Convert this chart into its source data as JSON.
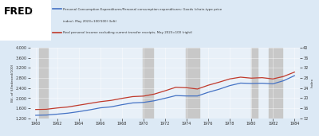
{
  "title_fred": "FRED",
  "legend_line1": "  —  Personal Consumption Expenditures/Personal consumption expenditures: Goods (chain-type price\n       index), May 2023=100/100) (left)",
  "legend_line2": "  —  Real personal income excluding current transfer receipts, May 2023=100 (right)",
  "bg_color": "#dce9f5",
  "plot_bg_color": "#e8f0f8",
  "recession_color": "#c8c8c8",
  "line1_color": "#4472c4",
  "line2_color": "#c0392b",
  "ylabel_left": "Bil. of $(Indexed/100)",
  "ylabel_right": "Index",
  "xlim": [
    1959.5,
    1984.5
  ],
  "ylim_left": [
    1200,
    4000
  ],
  "ylim_right": [
    12,
    40
  ],
  "yticks_left": [
    1200,
    1600,
    2000,
    2400,
    2800,
    3200,
    3600,
    4000
  ],
  "yticks_right": [
    12,
    16,
    20,
    24,
    28,
    32,
    36,
    40
  ],
  "xticks": [
    1960,
    1962,
    1964,
    1966,
    1968,
    1970,
    1972,
    1974,
    1976,
    1978,
    1980,
    1982,
    1984
  ],
  "recession_bands": [
    [
      1960.3,
      1961.1
    ],
    [
      1969.9,
      1970.9
    ],
    [
      1973.9,
      1975.2
    ],
    [
      1980.0,
      1980.6
    ],
    [
      1981.6,
      1982.9
    ]
  ],
  "years": [
    1960,
    1961,
    1962,
    1963,
    1964,
    1965,
    1966,
    1967,
    1968,
    1969,
    1970,
    1971,
    1972,
    1973,
    1974,
    1975,
    1976,
    1977,
    1978,
    1979,
    1980,
    1981,
    1982,
    1983,
    1984
  ],
  "pce_goods": [
    1320,
    1330,
    1365,
    1405,
    1465,
    1535,
    1615,
    1655,
    1740,
    1810,
    1830,
    1895,
    1995,
    2100,
    2085,
    2085,
    2230,
    2350,
    2495,
    2595,
    2580,
    2590,
    2565,
    2690,
    2890
  ],
  "real_income": [
    15.5,
    15.6,
    16.1,
    16.5,
    17.2,
    17.9,
    18.6,
    19.1,
    19.9,
    20.6,
    20.8,
    21.6,
    22.9,
    24.3,
    24.1,
    23.6,
    25.1,
    26.3,
    27.6,
    28.3,
    27.9,
    28.1,
    27.6,
    28.6,
    30.3
  ],
  "font_color": "#333333"
}
